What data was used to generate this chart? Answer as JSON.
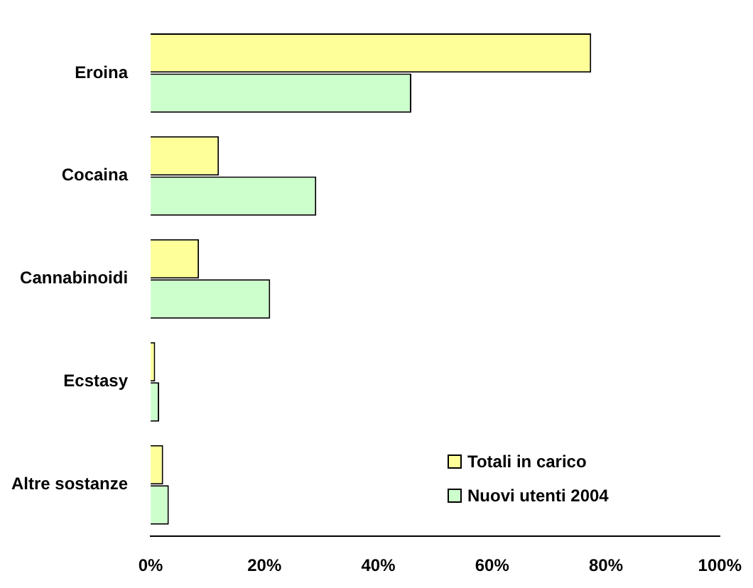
{
  "chart_data": {
    "type": "bar",
    "orientation": "horizontal",
    "categories": [
      "Eroina",
      "Cocaina",
      "Cannabinoidi",
      "Ecstasy",
      "Altre sostanze"
    ],
    "series": [
      {
        "name": "Totali in carico",
        "color": "#ffff99",
        "values": [
          77.4,
          12.0,
          8.5,
          0.8,
          2.2
        ]
      },
      {
        "name": "Nuovi utenti 2004",
        "color": "#ccffcc",
        "values": [
          45.8,
          29.1,
          21.0,
          1.5,
          3.2
        ]
      }
    ],
    "xlim": [
      0,
      100
    ],
    "xticks": [
      {
        "value": 0,
        "label": "0%"
      },
      {
        "value": 20,
        "label": "20%"
      },
      {
        "value": 40,
        "label": "40%"
      },
      {
        "value": 60,
        "label": "60%"
      },
      {
        "value": 80,
        "label": "80%"
      },
      {
        "value": 100,
        "label": "100%"
      }
    ],
    "grid": false,
    "legend": "bottom right"
  }
}
